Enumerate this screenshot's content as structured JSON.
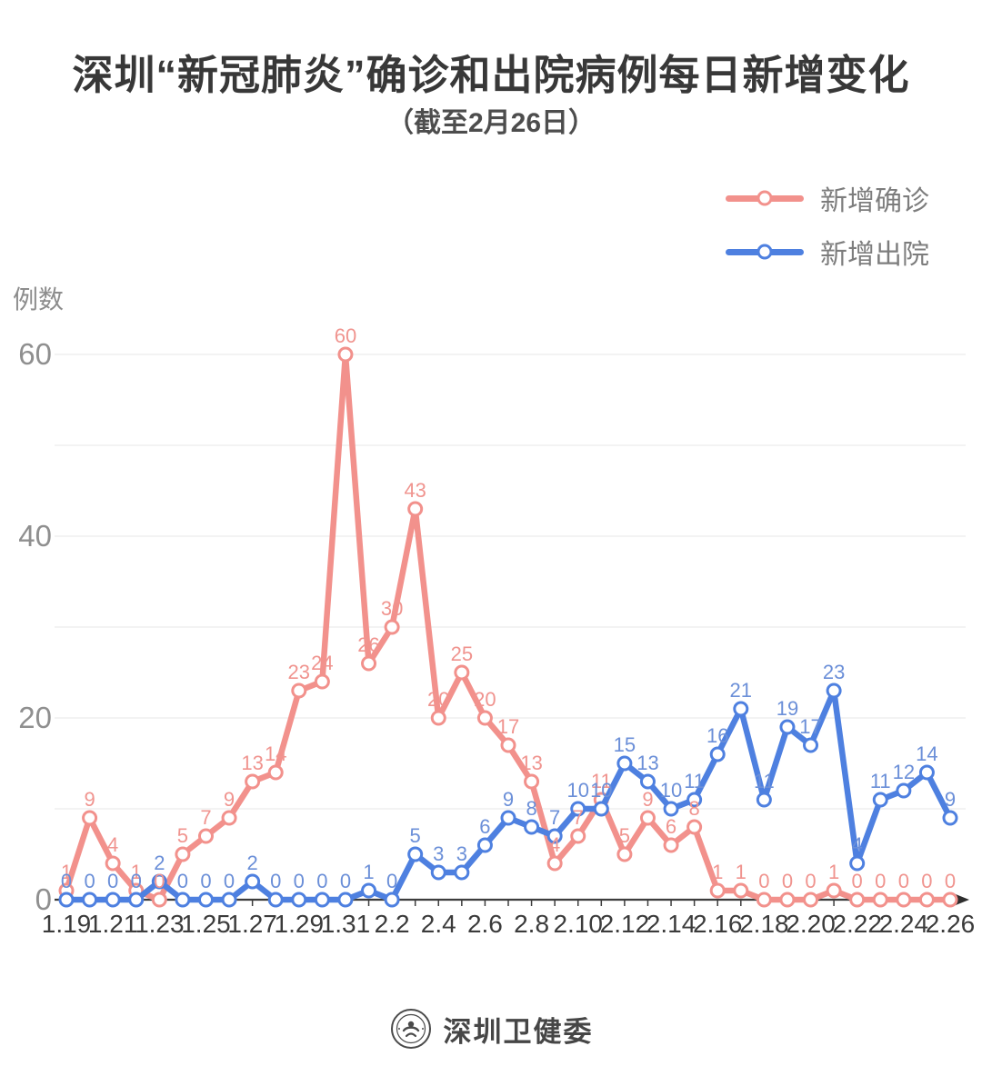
{
  "page": {
    "title": "深圳“新冠肺炎”确诊和出院病例每日新增变化",
    "subtitle": "（截至2月26日）",
    "footer": {
      "source_name": "深圳卫健委",
      "logo": "shenzhen-health-commission-emblem"
    }
  },
  "chart_data": {
    "type": "line",
    "title": "深圳“新冠肺炎”确诊和出院病例每日新增变化（截至2月26日）",
    "ylabel": "例数",
    "xlabel": "",
    "ylim": [
      0,
      60
    ],
    "yticks_labeled": [
      0,
      20,
      40,
      60
    ],
    "gridline_step": 10,
    "grid": true,
    "point_labels": true,
    "legend_position": "top-right",
    "xtick_every": 2,
    "categories": [
      "1.19",
      "1.20",
      "1.21",
      "1.22",
      "1.23",
      "1.24",
      "1.25",
      "1.26",
      "1.27",
      "1.28",
      "1.29",
      "1.30",
      "1.31",
      "2.1",
      "2.2",
      "2.3",
      "2.4",
      "2.5",
      "2.6",
      "2.7",
      "2.8",
      "2.9",
      "2.10",
      "2.11",
      "2.12",
      "2.13",
      "2.14",
      "2.15",
      "2.16",
      "2.17",
      "2.18",
      "2.19",
      "2.20",
      "2.21",
      "2.22",
      "2.23",
      "2.24",
      "2.25",
      "2.26"
    ],
    "series": [
      {
        "name": "新增确诊",
        "color": "#f2918c",
        "label_color": "#f0948f",
        "values": [
          1,
          9,
          4,
          1,
          0,
          5,
          7,
          9,
          13,
          14,
          23,
          24,
          60,
          26,
          30,
          43,
          20,
          25,
          20,
          17,
          13,
          4,
          7,
          11,
          5,
          9,
          6,
          8,
          1,
          1,
          0,
          0,
          0,
          1,
          0,
          0,
          0,
          0,
          0
        ]
      },
      {
        "name": "新增出院",
        "color": "#4e80e0",
        "label_color": "#6b8fd8",
        "values": [
          0,
          0,
          0,
          0,
          2,
          0,
          0,
          0,
          2,
          0,
          0,
          0,
          0,
          1,
          0,
          5,
          3,
          3,
          6,
          9,
          8,
          7,
          10,
          10,
          15,
          13,
          10,
          11,
          16,
          21,
          11,
          19,
          17,
          23,
          4,
          11,
          12,
          14,
          9
        ]
      }
    ],
    "axis_color": "#3d3d3d",
    "grid_color": "#ececec",
    "ytick_color": "#8f8f8f",
    "xtick_color": "#3b3b3b"
  }
}
